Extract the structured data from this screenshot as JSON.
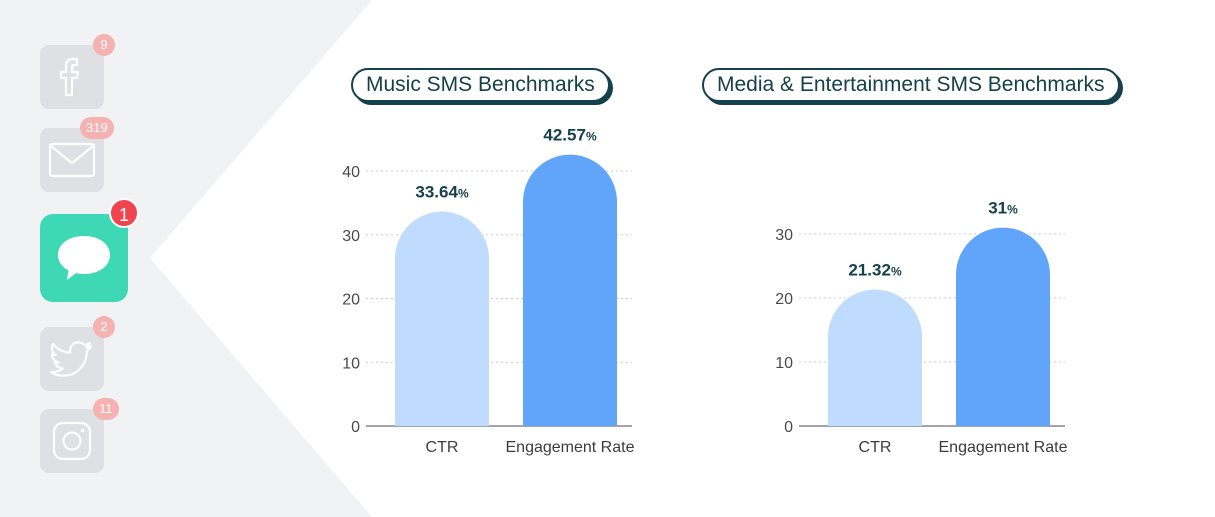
{
  "sidebar": {
    "apps": [
      {
        "name": "facebook",
        "icon": "facebook-icon",
        "badge": "9"
      },
      {
        "name": "email",
        "icon": "mail-icon",
        "badge": "319"
      },
      {
        "name": "sms",
        "icon": "chat-bubble-icon",
        "badge": "1",
        "active": true
      },
      {
        "name": "twitter",
        "icon": "twitter-icon",
        "badge": "2"
      },
      {
        "name": "instagram",
        "icon": "instagram-icon",
        "badge": "11"
      }
    ]
  },
  "colors": {
    "title_border": "#14414b",
    "label_text": "#14414b",
    "bar_light": "#bfdbfe",
    "bar_dark": "#60a5fa",
    "active_tile": "#3ed9b4",
    "active_badge": "#f0454e",
    "inactive_badge": "#f6b1b1"
  },
  "chart_data": [
    {
      "type": "bar",
      "title": "Music SMS Benchmarks",
      "categories": [
        "CTR",
        "Engagement Rate"
      ],
      "values": [
        33.64,
        42.57
      ],
      "data_labels": [
        "33.64",
        "42.57"
      ],
      "unit": "%",
      "ylim": [
        0,
        40
      ],
      "yticks": [
        0,
        10,
        20,
        30,
        40
      ],
      "grid": true,
      "bar_colors": [
        "#bfdbfe",
        "#60a5fa"
      ]
    },
    {
      "type": "bar",
      "title": "Media & Entertainment SMS Benchmarks",
      "categories": [
        "CTR",
        "Engagement Rate"
      ],
      "values": [
        21.32,
        31
      ],
      "data_labels": [
        "21.32",
        "31"
      ],
      "unit": "%",
      "ylim": [
        0,
        30
      ],
      "yticks": [
        0,
        10,
        20,
        30
      ],
      "grid": true,
      "bar_colors": [
        "#bfdbfe",
        "#60a5fa"
      ]
    }
  ]
}
